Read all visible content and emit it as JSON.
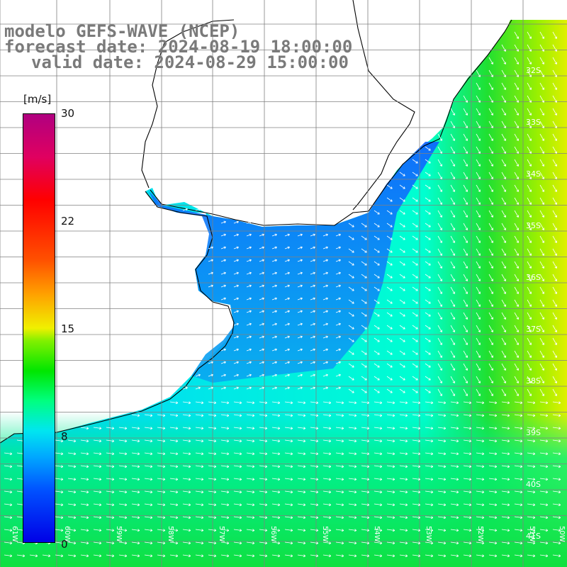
{
  "title": {
    "model": "modelo GEFS-WAVE (NCEP)",
    "forecast": "forecast date: 2024-08-19 18:00:00",
    "valid": "valid date: 2024-08-29 15:00:00"
  },
  "colorbar": {
    "unit": "[m/s]",
    "ticks": [
      "30",
      "22",
      "15",
      "8",
      "0"
    ],
    "tick_values": [
      30,
      22,
      15,
      8,
      0
    ],
    "range": [
      0,
      30
    ]
  },
  "lat_labels": [
    "32S",
    "33S",
    "34S",
    "35S",
    "36S",
    "37S",
    "38S",
    "39S",
    "40S",
    "41S"
  ],
  "lon_labels": [
    "61W",
    "60W",
    "59W",
    "58W",
    "57W",
    "56W",
    "55W",
    "54W",
    "53W",
    "52W",
    "51W",
    "50W"
  ],
  "colors": {
    "land": "#ffffff",
    "coastline": "#000000",
    "grid": "#808080",
    "arrows": "#ffffff",
    "title": "#7a7a7a"
  },
  "field_description_levels": [
    "blue (~2-4 m/s) in Rio de la Plata",
    "cyan (~7-9 m/s) offshore",
    "green (~10-13 m/s) south and east",
    "yellow (~15 m/s) far northeast"
  ]
}
